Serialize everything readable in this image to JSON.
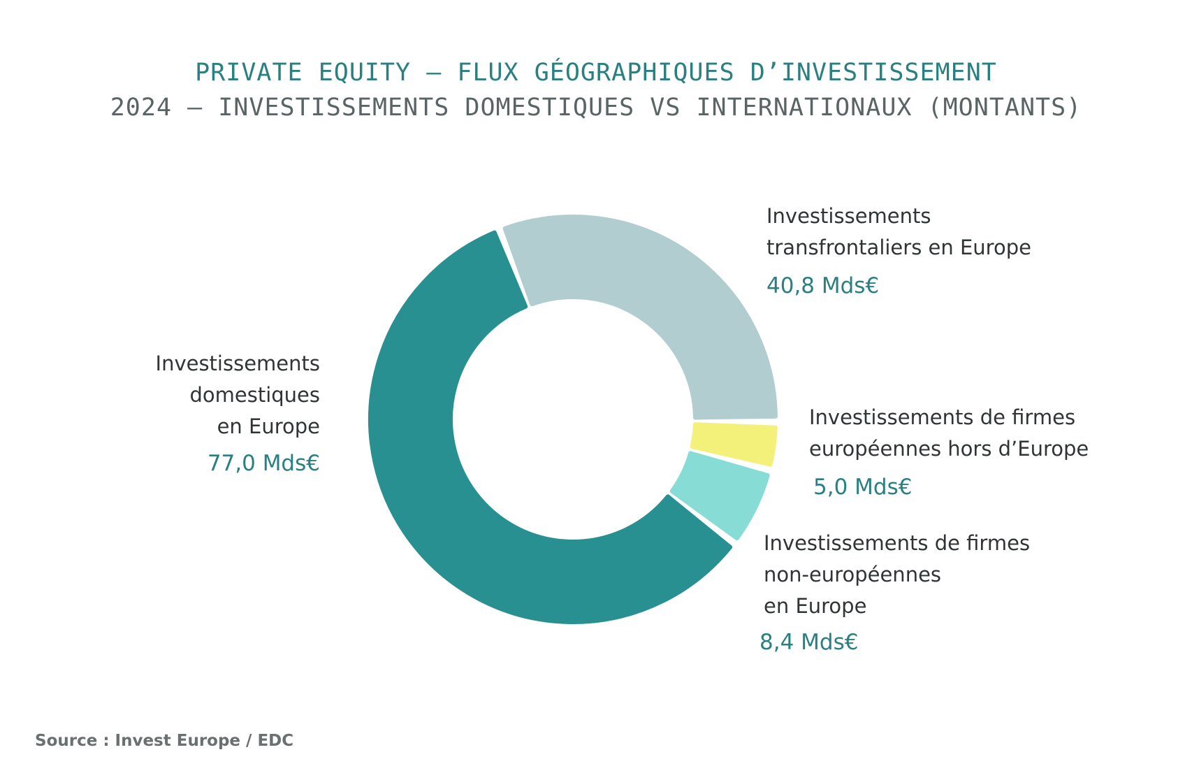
{
  "header": {
    "title": "PRIVATE EQUITY – FLUX GÉOGRAPHIQUES D’INVESTISSEMENT",
    "subtitle": "2024 – INVESTISSEMENTS DOMESTIQUES VS INTERNATIONAUX (MONTANTS)"
  },
  "source": "Source : Invest Europe / EDC",
  "chart_data": {
    "type": "pie",
    "variant": "donut",
    "unit": "Mds€",
    "slices": [
      {
        "label_lines": [
          "Investissements",
          "transfrontaliers en Europe"
        ],
        "value": 40.8,
        "value_label": "40,8 Mds€",
        "color": "#b2cdcf"
      },
      {
        "label_lines": [
          "Investissements de firmes",
          "européennes hors d’Europe"
        ],
        "value": 5.0,
        "value_label": "5,0 Mds€",
        "color": "#f3f17a"
      },
      {
        "label_lines": [
          "Investissements de firmes",
          "non-européennes",
          "en Europe"
        ],
        "value": 8.4,
        "value_label": "8,4 Mds€",
        "color": "#87ddd6"
      },
      {
        "label_lines": [
          "Investissements",
          "domestiques",
          "en Europe"
        ],
        "value": 77.0,
        "value_label": "77,0 Mds€",
        "color": "#289090"
      }
    ]
  }
}
